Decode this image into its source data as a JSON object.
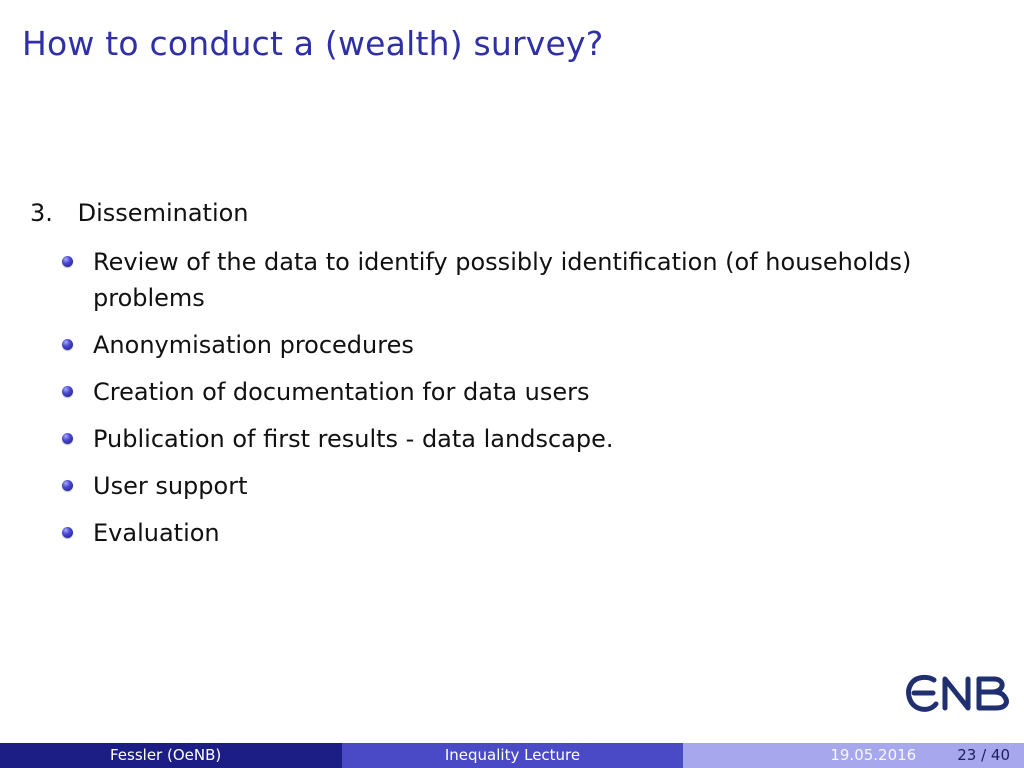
{
  "slide": {
    "title": "How to conduct a (wealth) survey?",
    "enum_item": {
      "number": "3.",
      "label": "Dissemination"
    },
    "bullets": [
      "Review of the data to identify possibly identification (of households) problems",
      "Anonymisation procedures",
      "Creation of documentation for data users",
      "Publication of first results - data landscape.",
      "User support",
      "Evaluation"
    ],
    "logo": {
      "text": "ONB",
      "color": "#1f2f6f"
    }
  },
  "footer": {
    "author": "Fessler  (OeNB)",
    "lecture": "Inequality Lecture",
    "date": "19.05.2016",
    "page": "23 / 40"
  },
  "colors": {
    "title": "#2f2fa6",
    "footer_left": "#1d1d86",
    "footer_center": "#4a4ac6",
    "footer_right": "#a7a7ee"
  }
}
